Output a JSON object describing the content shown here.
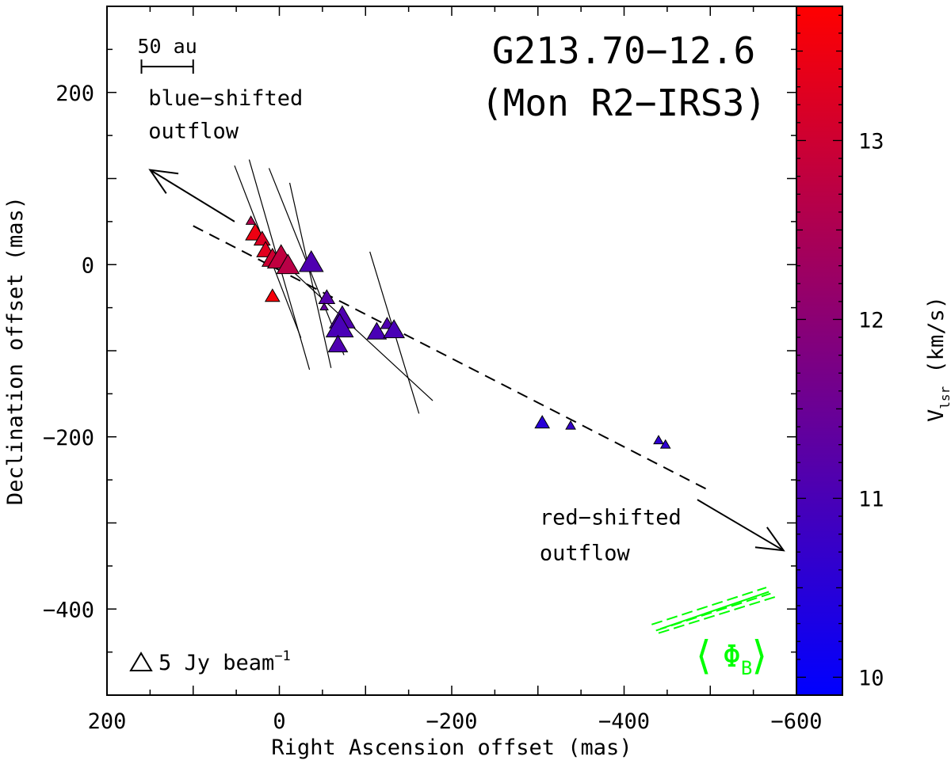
{
  "chart_data": {
    "type": "scatter",
    "title": "G213.70−12.6",
    "subtitle": "(Mon R2−IRS3)",
    "xlabel": "Right Ascension offset (mas)",
    "ylabel": "Declination offset (mas)",
    "xlim": [
      200,
      -600
    ],
    "ylim": [
      -500,
      300
    ],
    "x_ticks": [
      200,
      0,
      -200,
      -400,
      -600
    ],
    "x_tick_labels": [
      "200",
      "0",
      "−200",
      "−400",
      "−600"
    ],
    "y_ticks": [
      200,
      0,
      -200,
      -400
    ],
    "y_tick_labels": [
      "200",
      "0",
      "−200",
      "−400"
    ],
    "colorbar": {
      "label_main": "V",
      "label_sub": "lsr",
      "label_unit": " (km/s)",
      "range": [
        9.9,
        13.75
      ],
      "ticks": [
        10,
        11,
        12,
        13
      ],
      "tick_labels": [
        "10",
        "11",
        "12",
        "13"
      ],
      "colors": [
        "#0000ff",
        "#ff0000"
      ]
    },
    "scale_bar": {
      "label": "50 au",
      "x_from": 160,
      "x_to": 100,
      "y": 230
    },
    "beam_legend": {
      "label": "5 Jy beam",
      "superscript": "−1"
    },
    "annotations": [
      {
        "text": "blue−shifted",
        "x": 152,
        "y": 185
      },
      {
        "text": "outflow",
        "x": 152,
        "y": 147
      },
      {
        "text": "red−shifted",
        "x": -302,
        "y": -302
      },
      {
        "text": "outflow",
        "x": -302,
        "y": -343
      }
    ],
    "bfield_label": "Φ",
    "bfield_label_sub": "B",
    "series": [
      {
        "points": [
          {
            "x": 33,
            "y": 50,
            "v": 12.6,
            "s": 6
          },
          {
            "x": 28,
            "y": 35,
            "v": 13.5,
            "s": 12
          },
          {
            "x": 20,
            "y": 28,
            "v": 13.2,
            "s": 10
          },
          {
            "x": 16,
            "y": 15,
            "v": 13.3,
            "s": 11
          },
          {
            "x": 8,
            "y": 5,
            "v": 13.0,
            "s": 13
          },
          {
            "x": -2,
            "y": 5,
            "v": 12.8,
            "s": 17
          },
          {
            "x": -10,
            "y": -3,
            "v": 12.7,
            "s": 14
          },
          {
            "x": 8,
            "y": -38,
            "v": 13.6,
            "s": 9
          },
          {
            "x": -37,
            "y": 0,
            "v": 11.1,
            "s": 15
          },
          {
            "x": -55,
            "y": -40,
            "v": 11.2,
            "s": 10
          },
          {
            "x": -52,
            "y": -50,
            "v": 11.4,
            "s": 5
          },
          {
            "x": -73,
            "y": -65,
            "v": 11.1,
            "s": 16
          },
          {
            "x": -70,
            "y": -75,
            "v": 11.0,
            "s": 17
          },
          {
            "x": -68,
            "y": -95,
            "v": 11.1,
            "s": 12
          },
          {
            "x": -113,
            "y": -80,
            "v": 11.0,
            "s": 12
          },
          {
            "x": -125,
            "y": -70,
            "v": 11.1,
            "s": 8
          },
          {
            "x": -133,
            "y": -78,
            "v": 11.0,
            "s": 13
          },
          {
            "x": -305,
            "y": -185,
            "v": 10.5,
            "s": 9
          },
          {
            "x": -338,
            "y": -188,
            "v": 10.7,
            "s": 6
          },
          {
            "x": -440,
            "y": -205,
            "v": 10.6,
            "s": 6
          },
          {
            "x": -448,
            "y": -210,
            "v": 10.6,
            "s": 6
          }
        ]
      }
    ],
    "vectors": [
      {
        "x1": 52,
        "y1": 115,
        "x2": -25,
        "y2": -85
      },
      {
        "x1": 35,
        "y1": 122,
        "x2": -35,
        "y2": -122
      },
      {
        "x1": 12,
        "y1": 112,
        "x2": -75,
        "y2": -105
      },
      {
        "x1": -12,
        "y1": 95,
        "x2": -60,
        "y2": -120
      },
      {
        "x1": -105,
        "y1": 15,
        "x2": -162,
        "y2": -173
      },
      {
        "x1": 20,
        "y1": 25,
        "x2": -178,
        "y2": -158
      }
    ],
    "outflow_axis": {
      "x1": 100,
      "y1": 45,
      "x2": -500,
      "y2": -263
    },
    "outflow_arrows": [
      {
        "x1": 52,
        "y1": 50,
        "x2": 150,
        "y2": 110
      },
      {
        "x1": -485,
        "y1": -273,
        "x2": -585,
        "y2": -332
      }
    ],
    "bfield_lines": [
      {
        "x1": -432,
        "y1": -418,
        "x2": -565,
        "y2": -375
      },
      {
        "x1": -437,
        "y1": -425,
        "x2": -570,
        "y2": -382
      },
      {
        "x1": -440,
        "y1": -428,
        "x2": -575,
        "y2": -386
      },
      {
        "x1": -442,
        "y1": -423,
        "x2": -568,
        "y2": -380
      }
    ]
  }
}
